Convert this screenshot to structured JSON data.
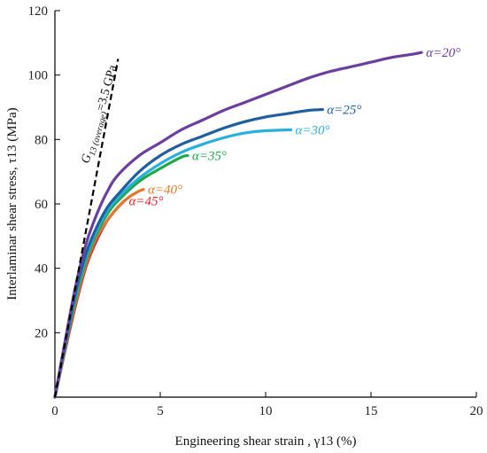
{
  "chart_data": {
    "type": "line",
    "title": "",
    "xlabel": "Engineering shear strain , γ13 (%)",
    "ylabel": "Interlaminar shear stress, τ13 (MPa)",
    "xlim": [
      0,
      20
    ],
    "ylim": [
      0,
      120
    ],
    "x_ticks": [
      0,
      5,
      10,
      15,
      20
    ],
    "y_ticks": [
      20,
      40,
      60,
      80,
      100,
      120
    ],
    "grid": false,
    "legend": "none (curves labelled inline)",
    "series": [
      {
        "name": "α=20°",
        "color": "#6b3fa0",
        "x": [
          0,
          0.5,
          1,
          1.5,
          2,
          2.5,
          3,
          4,
          5,
          6,
          7,
          8,
          9,
          10,
          11,
          12,
          13,
          14,
          15,
          16,
          17,
          17.4
        ],
        "y": [
          0,
          18,
          35,
          48,
          57,
          64,
          69,
          75,
          79,
          83,
          86,
          89,
          91.5,
          94,
          96.5,
          99,
          101,
          102.5,
          104,
          105.5,
          106.5,
          107
        ]
      },
      {
        "name": "α=25°",
        "color": "#1f5fa0",
        "x": [
          0,
          0.5,
          1,
          1.5,
          2,
          2.5,
          3,
          4,
          5,
          6,
          7,
          8,
          9,
          10,
          11,
          12,
          12.7
        ],
        "y": [
          0,
          17,
          33,
          45,
          53,
          59,
          63,
          70,
          75,
          78.5,
          81,
          83.5,
          85.5,
          87,
          88,
          89,
          89.3
        ]
      },
      {
        "name": "α=30°",
        "color": "#2ab0dc",
        "x": [
          0,
          0.5,
          1,
          1.5,
          2,
          2.5,
          3,
          4,
          5,
          6,
          7,
          8,
          9,
          10,
          11.2
        ],
        "y": [
          0,
          16.5,
          32,
          44,
          52,
          58,
          62,
          68,
          72.5,
          76,
          78.5,
          80.5,
          82,
          82.7,
          83
        ]
      },
      {
        "name": "α=35°",
        "color": "#1ea84a",
        "x": [
          0,
          0.5,
          1,
          1.5,
          2,
          2.5,
          3,
          4,
          5,
          6,
          6.3
        ],
        "y": [
          0,
          16,
          31,
          43,
          51,
          57,
          61,
          67,
          71,
          74.5,
          75
        ]
      },
      {
        "name": "α=40°",
        "color": "#e07a30",
        "x": [
          0,
          0.5,
          1,
          1.5,
          2,
          2.5,
          3,
          3.5,
          4,
          4.2
        ],
        "y": [
          0,
          16,
          30,
          42,
          50,
          55,
          59,
          62,
          64,
          64.5
        ]
      },
      {
        "name": "α=45°",
        "color": "#d8262a",
        "x": [
          0,
          0.5,
          1,
          1.5,
          2,
          2.5,
          3,
          3.3
        ],
        "y": [
          0,
          15,
          29,
          41,
          49,
          55,
          59,
          61
        ]
      }
    ],
    "reference_line": {
      "style": "dashed",
      "color": "#000000",
      "x": [
        0,
        3
      ],
      "y": [
        0,
        105
      ]
    },
    "annotation": {
      "label_main": "G",
      "label_sub": "13 (average)",
      "label_rest": "=3.5 GPa"
    }
  }
}
